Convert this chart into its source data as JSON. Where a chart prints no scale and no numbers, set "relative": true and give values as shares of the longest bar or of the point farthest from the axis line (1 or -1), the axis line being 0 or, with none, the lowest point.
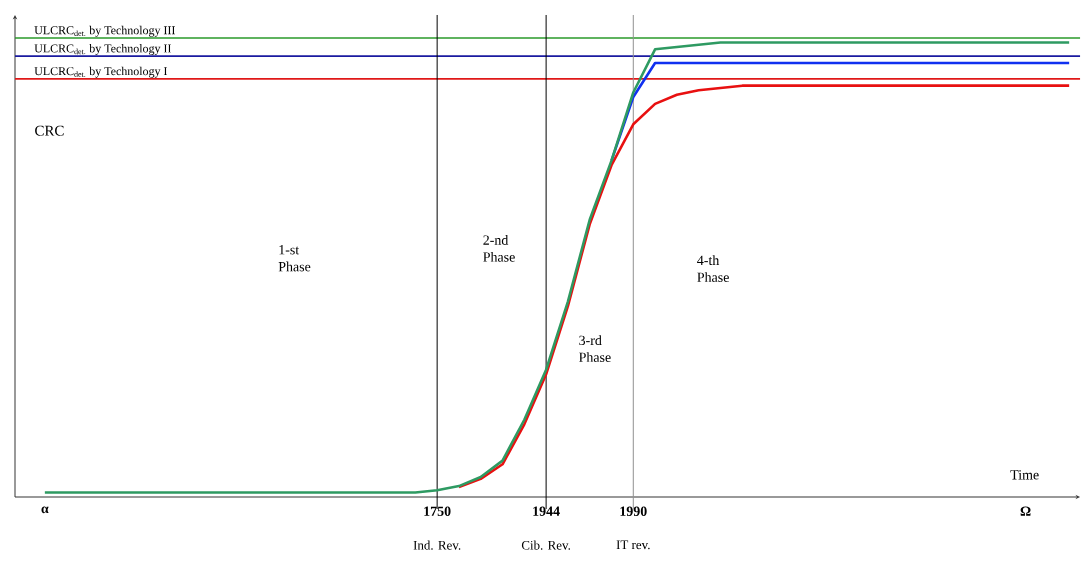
{
  "chart_data": {
    "type": "line",
    "relative": true,
    "xlabel": "Time",
    "ylabel": "CRC",
    "categories": [
      "α",
      null,
      null,
      null,
      null,
      null,
      null,
      null,
      null,
      null,
      null,
      null,
      null,
      null,
      null,
      null,
      null,
      null,
      "1750",
      null,
      null,
      null,
      null,
      "1944",
      null,
      null,
      null,
      "1990",
      null,
      null,
      null,
      null,
      null,
      null,
      null,
      null,
      null,
      null,
      null,
      null,
      null,
      null,
      null,
      null,
      null,
      "Ω",
      null,
      null
    ],
    "series": [
      {
        "color": "#e81010",
        "values": [
          null,
          null,
          null,
          null,
          null,
          null,
          null,
          null,
          null,
          null,
          null,
          null,
          null,
          null,
          null,
          null,
          null,
          null,
          null,
          0.022,
          0.04,
          0.072,
          0.16,
          0.27,
          0.42,
          0.6,
          0.73,
          0.82,
          0.865,
          0.885,
          0.895,
          0.9,
          0.905,
          0.905,
          0.905,
          0.905,
          0.905,
          0.905,
          0.905,
          0.905,
          0.905,
          0.905,
          0.905,
          0.905,
          0.905,
          0.905,
          0.905,
          0.905
        ]
      },
      {
        "color": "#1030f0",
        "values": [
          null,
          null,
          null,
          null,
          null,
          null,
          null,
          null,
          null,
          null,
          null,
          null,
          null,
          null,
          null,
          null,
          null,
          null,
          null,
          null,
          null,
          null,
          null,
          null,
          null,
          null,
          0.74,
          0.88,
          0.955,
          0.955,
          0.955,
          0.955,
          0.955,
          0.955,
          0.955,
          0.955,
          0.955,
          0.955,
          0.955,
          0.955,
          0.955,
          0.955,
          0.955,
          0.955,
          0.955,
          0.955,
          0.955,
          0.955
        ]
      },
      {
        "color": "#2e9a62",
        "values": [
          0.01,
          0.01,
          0.01,
          0.01,
          0.01,
          0.01,
          0.01,
          0.01,
          0.01,
          0.01,
          0.01,
          0.01,
          0.01,
          0.01,
          0.01,
          0.01,
          0.01,
          0.01,
          0.015,
          0.024,
          0.044,
          0.08,
          0.17,
          0.28,
          0.43,
          0.61,
          0.74,
          0.89,
          0.985,
          0.99,
          0.995,
          1,
          1,
          1,
          1,
          1,
          1,
          1,
          1,
          1,
          1,
          1,
          1,
          1,
          1,
          1,
          1,
          1
        ]
      }
    ],
    "ref_lines": [
      {
        "axis": "y",
        "value": 1.01,
        "label": "ULCRC$_{det.}$ by Technology III",
        "color": "#2a9a2a"
      },
      {
        "axis": "y",
        "value": 0.97,
        "label": "ULCRC$_{det.}$ by Technology II",
        "color": "#1a1aa0"
      },
      {
        "axis": "y",
        "value": 0.92,
        "label": "ULCRC$_{det.}$ by Technology I",
        "color": "#e01818"
      },
      {
        "axis": "x",
        "value": "1750",
        "label": "Ind. Rev.",
        "color": "#000000"
      },
      {
        "axis": "x",
        "value": "1944",
        "label": "Cib. Rev.",
        "color": "#000000"
      },
      {
        "axis": "x",
        "value": "1990",
        "label": "IT rev.",
        "color": "#909090"
      }
    ],
    "annotations": [
      "1-st Phase",
      "2-nd Phase",
      "3-rd Phase",
      "4-th Phase"
    ],
    "grid": false,
    "marker": "none",
    "line_style": "solid"
  }
}
